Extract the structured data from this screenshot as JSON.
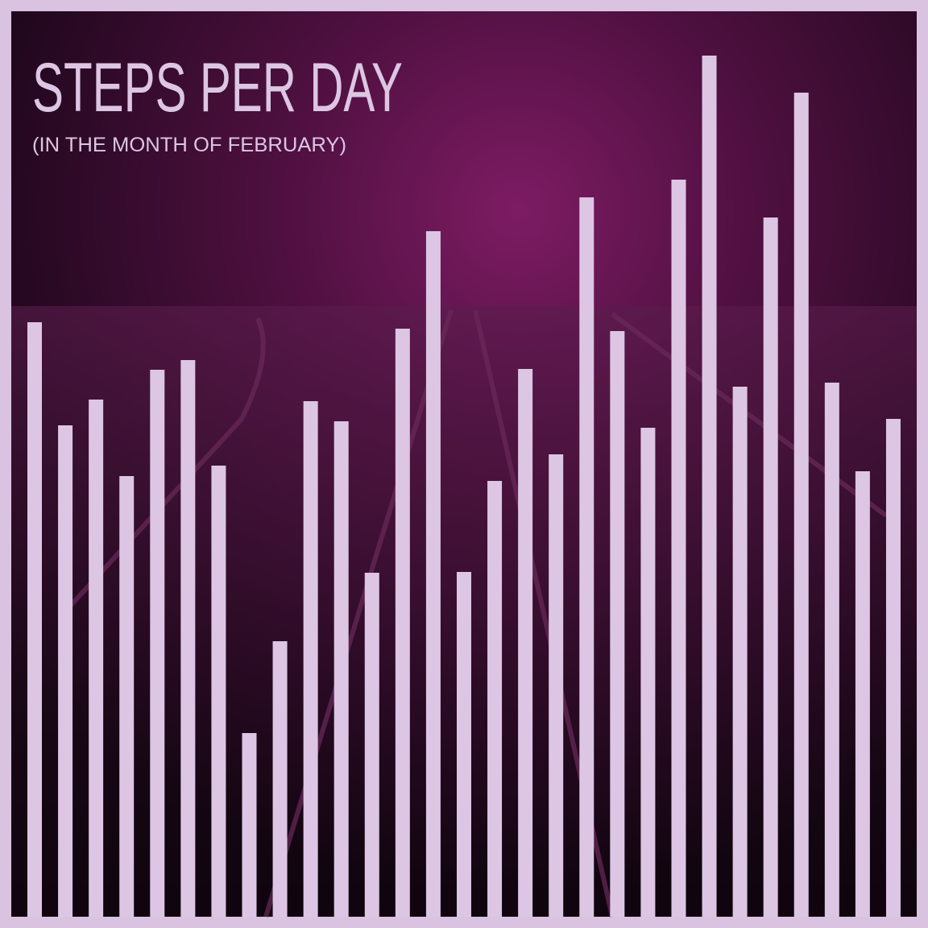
{
  "chart_data": {
    "type": "bar",
    "title": "STEPS PER DAY",
    "subtitle": "(IN THE MONTH OF FEBRUARY)",
    "values": [
      738,
      610,
      642,
      547,
      679,
      691,
      560,
      228,
      342,
      640,
      615,
      427,
      730,
      851,
      428,
      541,
      680,
      574,
      893,
      727,
      607,
      915,
      1069,
      658,
      868,
      1023,
      663,
      553,
      618
    ],
    "color": "#dcc6e3",
    "ylim": [
      0,
      1124
    ]
  }
}
